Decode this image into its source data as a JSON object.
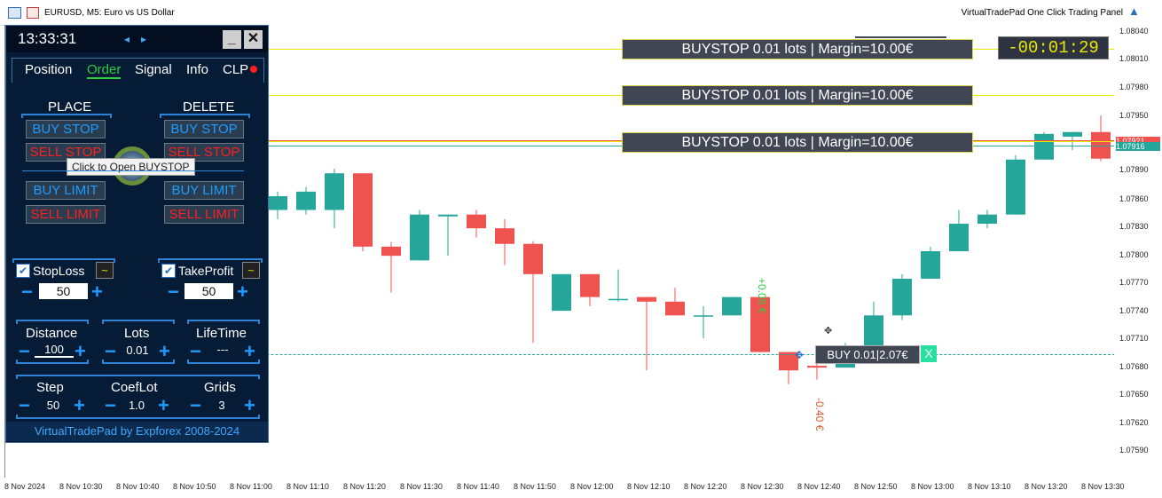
{
  "window": {
    "title": "EURUSD, M5:  Euro vs US Dollar",
    "right_label": "VirtualTradePad One Click Trading Panel"
  },
  "colors": {
    "bull": "#26a69a",
    "bear": "#ef5350",
    "panel_bg": "#061b35",
    "accent": "#1e9bff",
    "order_line": "#e8e800"
  },
  "panel": {
    "clock": "13:33:31",
    "arrow_left": "◂",
    "arrow_right": "▸",
    "minimize_label": "_",
    "close_label": "✕",
    "tabs": [
      {
        "label": "Position",
        "active": false
      },
      {
        "label": "Order",
        "active": true
      },
      {
        "label": "Signal",
        "active": false
      },
      {
        "label": "Info",
        "active": false
      },
      {
        "label": "CLP",
        "active": false
      }
    ],
    "place_title": "PLACE",
    "delete_title": "DELETE",
    "buttons": {
      "place_buy_stop": "BUY STOP",
      "place_sell_stop": "SELL STOP",
      "place_buy_limit": "BUY LIMIT",
      "place_sell_limit": "SELL LIMIT",
      "delete_buy_stop": "BUY STOP",
      "delete_sell_stop": "SELL STOP",
      "delete_buy_limit": "BUY LIMIT",
      "delete_sell_limit": "SELL LIMIT"
    },
    "tooltip": "Click to Open BUYSTOP",
    "stoploss": {
      "label": "StopLoss",
      "value": "50",
      "checked": true
    },
    "takeprofit": {
      "label": "TakeProfit",
      "value": "50",
      "checked": true
    },
    "distance": {
      "label": "Distance",
      "value": "100"
    },
    "lots": {
      "label": "Lots",
      "value": "0.01"
    },
    "lifetime": {
      "label": "LifeTime",
      "value": "---"
    },
    "step": {
      "label": "Step",
      "value": "50"
    },
    "coeflot": {
      "label": "CoefLot",
      "value": "1.0"
    },
    "grids": {
      "label": "Grids",
      "value": "3"
    },
    "footer": "VirtualTradePad by Expforex 2008-2024",
    "minus": "−",
    "plus": "+"
  },
  "chart": {
    "timer": "-00:01:29",
    "orders": [
      {
        "label": "BUYSTOP 0.01 lots | Margin=10.00€"
      },
      {
        "label": "BUYSTOP 0.01 lots | Margin=10.00€"
      },
      {
        "label": "BUYSTOP 0.01 lots | Margin=10.00€"
      }
    ],
    "position_label": "BUY 0.01|2.07€",
    "position_close": "X",
    "profit_annotation": "+0.05 €",
    "loss_annotation": "-0.40 €",
    "price_labels": [
      "1.08040",
      "1.08010",
      "1.07980",
      "1.07950",
      "1.07921",
      "1.07916",
      "1.07890",
      "1.07860",
      "1.07830",
      "1.07800",
      "1.07770",
      "1.07740",
      "1.07710",
      "1.07680",
      "1.07650",
      "1.07620",
      "1.07590"
    ],
    "current_price_red": "1.07921",
    "current_price_green": "1.07916",
    "time_labels": [
      "8 Nov 2024",
      "8 Nov 10:30",
      "8 Nov 10:40",
      "8 Nov 10:50",
      "8 Nov 11:00",
      "8 Nov 11:10",
      "8 Nov 11:20",
      "8 Nov 11:30",
      "8 Nov 11:40",
      "8 Nov 11:50",
      "8 Nov 12:00",
      "8 Nov 12:10",
      "8 Nov 12:20",
      "8 Nov 12:30",
      "8 Nov 12:40",
      "8 Nov 12:50",
      "8 Nov 13:00",
      "8 Nov 13:10",
      "8 Nov 13:20",
      "8 Nov 13:30"
    ]
  },
  "chart_data": {
    "type": "candlestick",
    "ylim": [
      1.0757,
      1.0806
    ],
    "candles": [
      {
        "o": 1.0786,
        "h": 1.0788,
        "l": 1.0785,
        "c": 1.07875
      },
      {
        "o": 1.0786,
        "h": 1.07885,
        "l": 1.07855,
        "c": 1.0788
      },
      {
        "o": 1.0786,
        "h": 1.07905,
        "l": 1.0784,
        "c": 1.079
      },
      {
        "o": 1.079,
        "h": 1.079,
        "l": 1.07815,
        "c": 1.0782
      },
      {
        "o": 1.0782,
        "h": 1.07825,
        "l": 1.0777,
        "c": 1.0781
      },
      {
        "o": 1.07805,
        "h": 1.0786,
        "l": 1.07805,
        "c": 1.07855
      },
      {
        "o": 1.07853,
        "h": 1.07855,
        "l": 1.0781,
        "c": 1.07855
      },
      {
        "o": 1.07855,
        "h": 1.0786,
        "l": 1.0783,
        "c": 1.0784
      },
      {
        "o": 1.0784,
        "h": 1.0785,
        "l": 1.078,
        "c": 1.07823
      },
      {
        "o": 1.07823,
        "h": 1.07826,
        "l": 1.07715,
        "c": 1.0779
      },
      {
        "o": 1.0775,
        "h": 1.0779,
        "l": 1.0775,
        "c": 1.0779
      },
      {
        "o": 1.0779,
        "h": 1.0779,
        "l": 1.07755,
        "c": 1.07765
      },
      {
        "o": 1.07763,
        "h": 1.07795,
        "l": 1.0776,
        "c": 1.07763
      },
      {
        "o": 1.07765,
        "h": 1.07765,
        "l": 1.07685,
        "c": 1.0776
      },
      {
        "o": 1.0776,
        "h": 1.07775,
        "l": 1.07745,
        "c": 1.07745
      },
      {
        "o": 1.07745,
        "h": 1.07755,
        "l": 1.0772,
        "c": 1.07745
      },
      {
        "o": 1.07745,
        "h": 1.07765,
        "l": 1.07745,
        "c": 1.07765
      },
      {
        "o": 1.07765,
        "h": 1.07765,
        "l": 1.07705,
        "c": 1.07705
      },
      {
        "o": 1.07705,
        "h": 1.07705,
        "l": 1.0767,
        "c": 1.07685
      },
      {
        "o": 1.0769,
        "h": 1.07705,
        "l": 1.07675,
        "c": 1.07688
      },
      {
        "o": 1.07688,
        "h": 1.07715,
        "l": 1.07688,
        "c": 1.07712
      },
      {
        "o": 1.07712,
        "h": 1.0776,
        "l": 1.0771,
        "c": 1.07745
      },
      {
        "o": 1.07745,
        "h": 1.0779,
        "l": 1.0774,
        "c": 1.07785
      },
      {
        "o": 1.07785,
        "h": 1.0782,
        "l": 1.07785,
        "c": 1.07815
      },
      {
        "o": 1.07815,
        "h": 1.0786,
        "l": 1.07815,
        "c": 1.07845
      },
      {
        "o": 1.07845,
        "h": 1.0786,
        "l": 1.0784,
        "c": 1.07855
      },
      {
        "o": 1.07855,
        "h": 1.0792,
        "l": 1.07855,
        "c": 1.07915
      },
      {
        "o": 1.07915,
        "h": 1.07945,
        "l": 1.07915,
        "c": 1.07943
      },
      {
        "o": 1.0794,
        "h": 1.07945,
        "l": 1.07925,
        "c": 1.07945
      },
      {
        "o": 1.07945,
        "h": 1.07963,
        "l": 1.07913,
        "c": 1.07916
      }
    ]
  }
}
